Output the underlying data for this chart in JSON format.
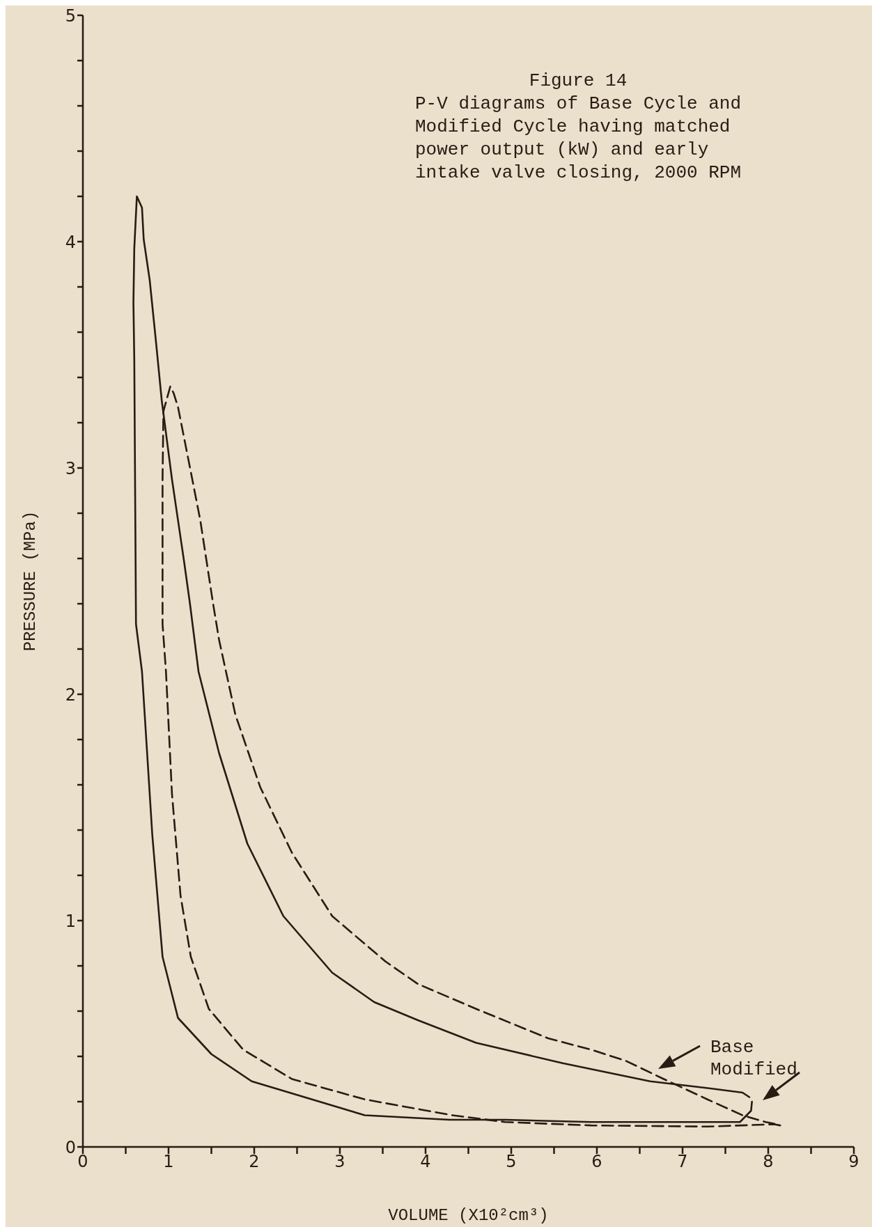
{
  "chart_data": {
    "type": "line",
    "title": "Figure 14",
    "subtitle": "P-V diagrams of Base Cycle and\nModified Cycle having matched\npower output (kW) and early\nintake valve closing, 2000 RPM",
    "xlabel": "VOLUME (X10²cm³)",
    "ylabel": "PRESSURE (MPa)",
    "xlim": [
      0,
      9
    ],
    "ylim": [
      0,
      5
    ],
    "xticks": [
      0,
      {
        "value": 0.5,
        "label": null
      },
      1,
      {
        "value": 1.5,
        "label": null
      },
      2,
      {
        "value": 2.5,
        "label": null
      },
      3,
      {
        "value": 3.5,
        "label": null
      },
      4,
      {
        "value": 4.5,
        "label": null
      },
      5,
      {
        "value": 5.5,
        "label": null
      },
      6,
      {
        "value": 6.5,
        "label": null
      },
      7,
      {
        "value": 7.5,
        "label": null
      },
      8,
      {
        "value": 8.5,
        "label": null
      },
      9
    ],
    "yticks": [
      0,
      {
        "value": 0.2,
        "label": null
      },
      {
        "value": 0.4,
        "label": null
      },
      {
        "value": 0.6,
        "label": null
      },
      {
        "value": 0.8,
        "label": null
      },
      1,
      {
        "value": 1.2,
        "label": null
      },
      {
        "value": 1.4,
        "label": null
      },
      {
        "value": 1.6,
        "label": null
      },
      {
        "value": 1.8,
        "label": null
      },
      2,
      {
        "value": 2.2,
        "label": null
      },
      {
        "value": 2.4,
        "label": null
      },
      {
        "value": 2.6,
        "label": null
      },
      {
        "value": 2.8,
        "label": null
      },
      3,
      {
        "value": 3.2,
        "label": null
      },
      {
        "value": 3.4,
        "label": null
      },
      {
        "value": 3.6,
        "label": null
      },
      {
        "value": 3.8,
        "label": null
      },
      4,
      {
        "value": 4.2,
        "label": null
      },
      {
        "value": 4.4,
        "label": null
      },
      {
        "value": 4.6,
        "label": null
      },
      {
        "value": 4.8,
        "label": null
      },
      5
    ],
    "grid": false,
    "marker": "none",
    "series": [
      {
        "color": "#2a1a14",
        "line_style": "solid",
        "x": [
          7.81,
          7.8,
          7.67,
          5.93,
          4.93,
          4.28,
          3.29,
          1.97,
          1.5,
          1.11,
          0.93,
          0.81,
          0.69,
          0.62,
          0.6,
          0.59,
          0.6,
          0.63,
          0.69,
          0.71,
          0.78,
          0.85,
          0.92,
          1.04,
          1.18,
          1.25,
          1.35,
          1.59,
          1.92,
          2.34,
          2.91,
          3.4,
          3.91,
          4.59,
          5.6,
          6.62,
          7.29,
          7.7,
          7.78
        ],
        "values": [
          0.2,
          0.16,
          0.11,
          0.11,
          0.12,
          0.12,
          0.14,
          0.29,
          0.41,
          0.57,
          0.84,
          1.38,
          2.1,
          2.31,
          3.48,
          3.73,
          3.97,
          4.2,
          4.15,
          4.01,
          3.83,
          3.57,
          3.3,
          2.95,
          2.59,
          2.4,
          2.1,
          1.74,
          1.34,
          1.02,
          0.77,
          0.64,
          0.56,
          0.46,
          0.37,
          0.29,
          0.26,
          0.24,
          0.22
        ]
      },
      {
        "color": "#2a1a14",
        "line_style": "dashed",
        "x": [
          8.14,
          8.07,
          7.29,
          5.93,
          4.93,
          4.31,
          3.29,
          2.44,
          1.87,
          1.47,
          1.26,
          1.14,
          1.04,
          0.97,
          0.93,
          0.93,
          0.94,
          1.02,
          1.06,
          1.11,
          1.23,
          1.37,
          1.52,
          1.59,
          1.78,
          2.07,
          2.44,
          2.91,
          3.53,
          3.91,
          4.59,
          5.43,
          5.93,
          6.34,
          6.78,
          7.29,
          7.7,
          7.97,
          8.1
        ],
        "values": [
          0.095,
          0.1,
          0.09,
          0.095,
          0.11,
          0.14,
          0.21,
          0.3,
          0.43,
          0.61,
          0.84,
          1.11,
          1.56,
          2.1,
          2.31,
          2.95,
          3.25,
          3.36,
          3.33,
          3.27,
          3.04,
          2.77,
          2.4,
          2.24,
          1.91,
          1.59,
          1.3,
          1.02,
          0.82,
          0.72,
          0.61,
          0.48,
          0.43,
          0.38,
          0.3,
          0.21,
          0.14,
          0.11,
          0.1
        ]
      }
    ],
    "annotations": [
      "Base",
      "Modified"
    ]
  }
}
